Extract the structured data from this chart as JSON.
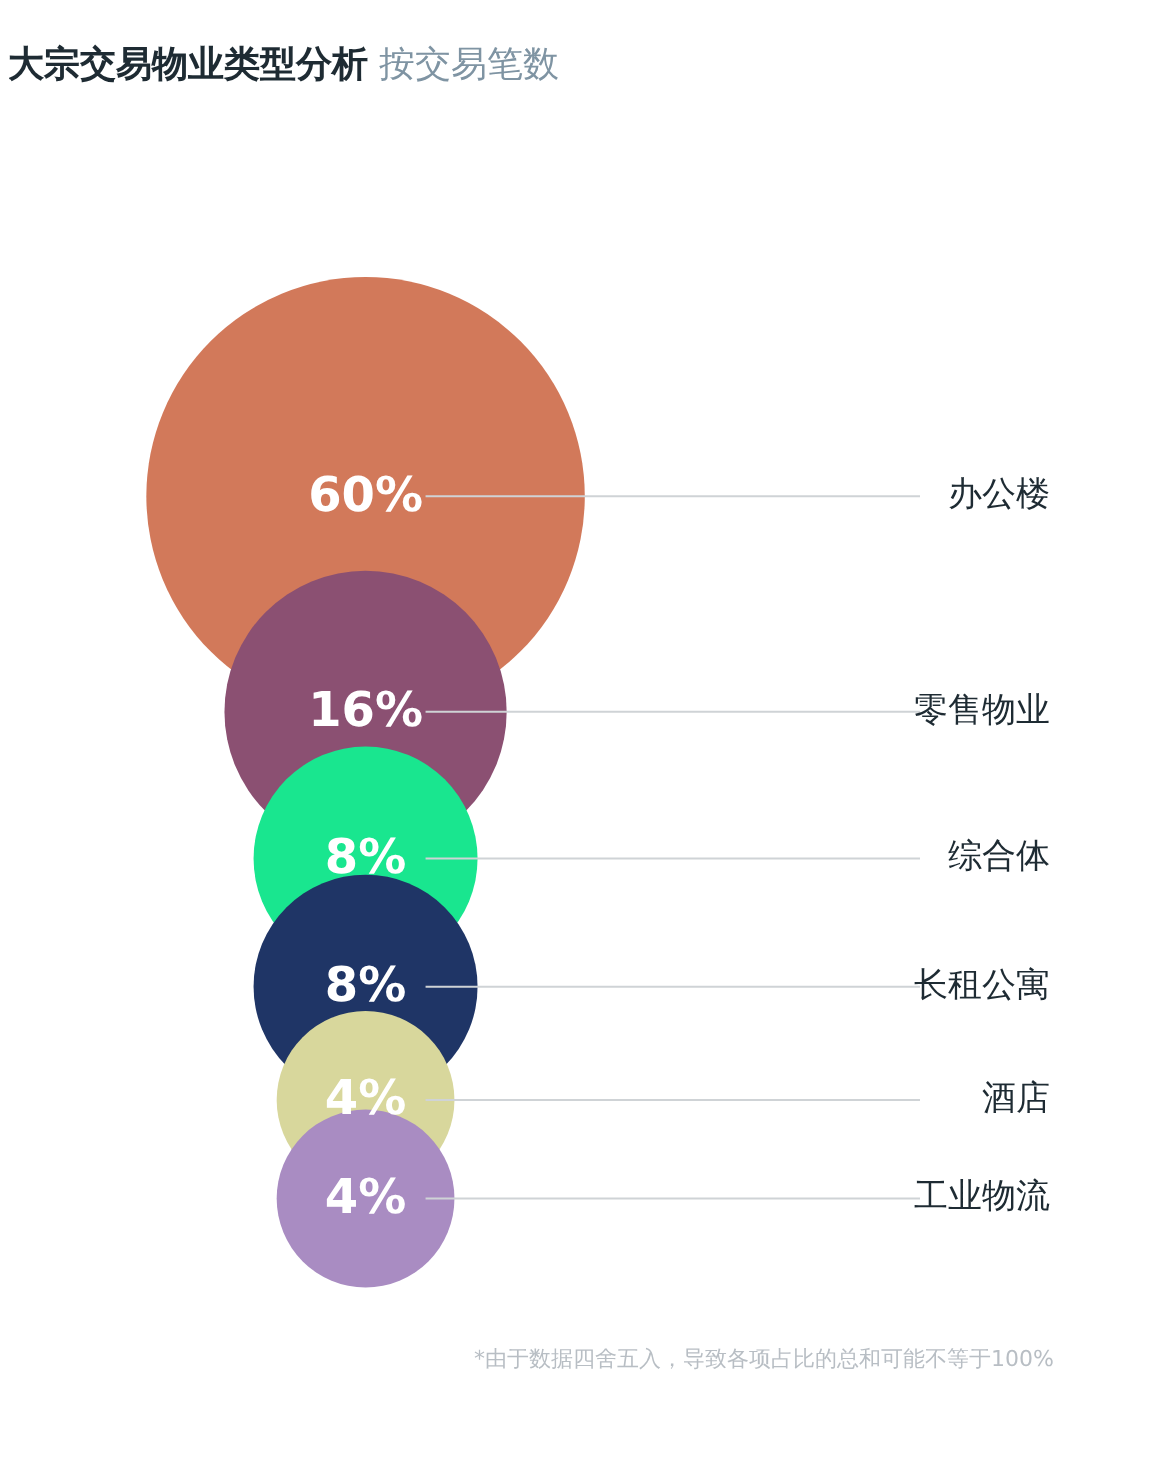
{
  "chart_data": {
    "type": "other",
    "title": "大宗交易物业类型分析",
    "subtitle": "按交易笔数",
    "categories": [
      "办公楼",
      "零售物业",
      "综合体",
      "长租公寓",
      "酒店",
      "工业物流"
    ],
    "values": [
      60,
      16,
      8,
      8,
      4,
      4
    ],
    "value_labels": [
      "60%",
      "16%",
      "8%",
      "8%",
      "4%",
      "4%"
    ],
    "colors": [
      "#d2795a",
      "#8b5072",
      "#19e68f",
      "#1f3566",
      "#d8d79c",
      "#a98cc2"
    ],
    "annotations": [
      "*由于数据四舍五入，导致各项占比的总和可能不等于100%"
    ]
  }
}
